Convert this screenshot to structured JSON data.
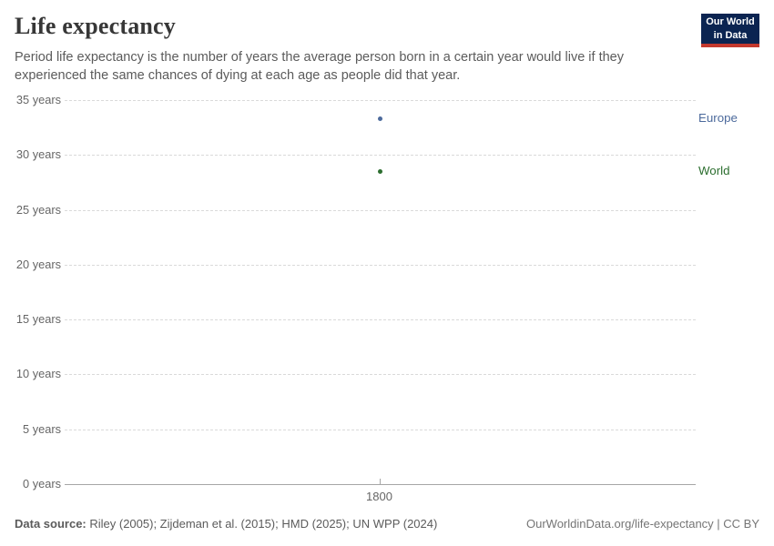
{
  "header": {
    "title": "Life expectancy",
    "subtitle": "Period life expectancy is the number of years the average person born in a certain year would live if they experienced the same chances of dying at each age as people did that year.",
    "logo": {
      "line1": "Our World",
      "line2": "in Data",
      "bg_color": "#0b2451",
      "bar_color": "#c3382d"
    }
  },
  "chart_data": {
    "type": "scatter",
    "title": "Life expectancy",
    "x": [
      1800
    ],
    "xticklabels": [
      "1800"
    ],
    "series": [
      {
        "name": "Europe",
        "values": [
          33.3
        ],
        "color": "#4C6A9C"
      },
      {
        "name": "World",
        "values": [
          28.5
        ],
        "color": "#2C6E2F"
      }
    ],
    "ylim": [
      0,
      35
    ],
    "yticks": [
      0,
      5,
      10,
      15,
      20,
      25,
      30,
      35
    ],
    "ytick_suffix": " years",
    "grid": "horizontal-dashed",
    "legend_position": "right"
  },
  "footer": {
    "source_label": "Data source:",
    "source_text": " Riley (2005); Zijdeman et al. (2015); HMD (2025); UN WPP (2024)",
    "rights": "OurWorldinData.org/life-expectancy | CC BY"
  }
}
